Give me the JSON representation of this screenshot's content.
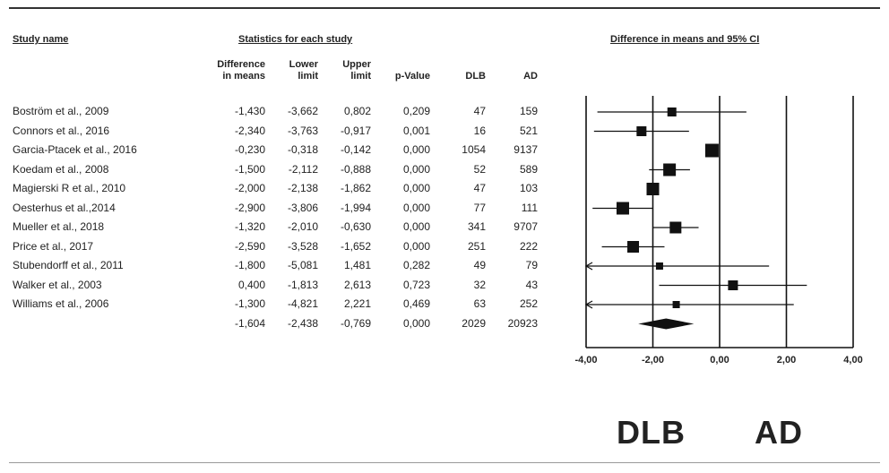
{
  "headers": {
    "study_name": "Study name",
    "stats": "Statistics for each study",
    "ci": "Difference in means and 95% CI"
  },
  "columns": {
    "diff": "Difference\nin means",
    "lower": "Lower\nlimit",
    "upper": "Upper\nlimit",
    "pvalue": "p-Value",
    "dlb": "DLB",
    "ad": "AD"
  },
  "rows": [
    {
      "study": "Boström et al., 2009",
      "diff": "-1,430",
      "lower": "-3,662",
      "upper": "0,802",
      "p": "0,209",
      "dlb": "47",
      "ad": "159"
    },
    {
      "study": "Connors et al., 2016",
      "diff": "-2,340",
      "lower": "-3,763",
      "upper": "-0,917",
      "p": "0,001",
      "dlb": "16",
      "ad": "521"
    },
    {
      "study": "Garcia-Ptacek et al., 2016",
      "diff": "-0,230",
      "lower": "-0,318",
      "upper": "-0,142",
      "p": "0,000",
      "dlb": "1054",
      "ad": "9137"
    },
    {
      "study": "Koedam et al., 2008",
      "diff": "-1,500",
      "lower": "-2,112",
      "upper": "-0,888",
      "p": "0,000",
      "dlb": "52",
      "ad": "589"
    },
    {
      "study": "Magierski R et al., 2010",
      "diff": "-2,000",
      "lower": "-2,138",
      "upper": "-1,862",
      "p": "0,000",
      "dlb": "47",
      "ad": "103"
    },
    {
      "study": "Oesterhus et al.,2014",
      "diff": "-2,900",
      "lower": "-3,806",
      "upper": "-1,994",
      "p": "0,000",
      "dlb": "77",
      "ad": "111"
    },
    {
      "study": "Mueller et al., 2018",
      "diff": "-1,320",
      "lower": "-2,010",
      "upper": "-0,630",
      "p": "0,000",
      "dlb": "341",
      "ad": "9707"
    },
    {
      "study": "Price et al., 2017",
      "diff": "-2,590",
      "lower": "-3,528",
      "upper": "-1,652",
      "p": "0,000",
      "dlb": "251",
      "ad": "222"
    },
    {
      "study": "Stubendorff et al., 2011",
      "diff": "-1,800",
      "lower": "-5,081",
      "upper": "1,481",
      "p": "0,282",
      "dlb": "49",
      "ad": "79"
    },
    {
      "study": "Walker et al., 2003",
      "diff": "0,400",
      "lower": "-1,813",
      "upper": "2,613",
      "p": "0,723",
      "dlb": "32",
      "ad": "43"
    },
    {
      "study": "Williams et al., 2006",
      "diff": "-1,300",
      "lower": "-4,821",
      "upper": "2,221",
      "p": "0,469",
      "dlb": "63",
      "ad": "252"
    }
  ],
  "summary": {
    "diff": "-1,604",
    "lower": "-2,438",
    "upper": "-0,769",
    "p": "0,000",
    "dlb": "2029",
    "ad": "20923"
  },
  "labels": {
    "left_group": "DLB",
    "right_group": "AD"
  },
  "chart_data": {
    "type": "scatter",
    "subtype": "forest",
    "title": "Difference in means and 95% CI",
    "xlim": [
      -4,
      4
    ],
    "x_ticks": [
      -4,
      -2,
      0,
      2,
      4
    ],
    "x_tick_labels": [
      "-4,00",
      "-2,00",
      "0,00",
      "2,00",
      "4,00"
    ],
    "series": [
      {
        "points": [
          {
            "study": "Boström et al., 2009",
            "x": -1.43,
            "lower": -3.662,
            "upper": 0.802
          },
          {
            "study": "Connors et al., 2016",
            "x": -2.34,
            "lower": -3.763,
            "upper": -0.917
          },
          {
            "study": "Garcia-Ptacek et al., 2016",
            "x": -0.23,
            "lower": -0.318,
            "upper": -0.142
          },
          {
            "study": "Koedam et al., 2008",
            "x": -1.5,
            "lower": -2.112,
            "upper": -0.888
          },
          {
            "study": "Magierski R et al., 2010",
            "x": -2.0,
            "lower": -2.138,
            "upper": -1.862
          },
          {
            "study": "Oesterhus et al.,2014",
            "x": -2.9,
            "lower": -3.806,
            "upper": -1.994
          },
          {
            "study": "Mueller et al., 2018",
            "x": -1.32,
            "lower": -2.01,
            "upper": -0.63
          },
          {
            "study": "Price et al., 2017",
            "x": -2.59,
            "lower": -3.528,
            "upper": -1.652
          },
          {
            "study": "Stubendorff et al., 2011",
            "x": -1.8,
            "lower": -5.081,
            "upper": 1.481
          },
          {
            "study": "Walker et al., 2003",
            "x": 0.4,
            "lower": -1.813,
            "upper": 2.613
          },
          {
            "study": "Williams et al., 2006",
            "x": -1.3,
            "lower": -4.821,
            "upper": 2.221
          }
        ]
      }
    ],
    "summary": {
      "x": -1.604,
      "lower": -2.438,
      "upper": -0.769
    },
    "grid": false,
    "legend": "none"
  }
}
